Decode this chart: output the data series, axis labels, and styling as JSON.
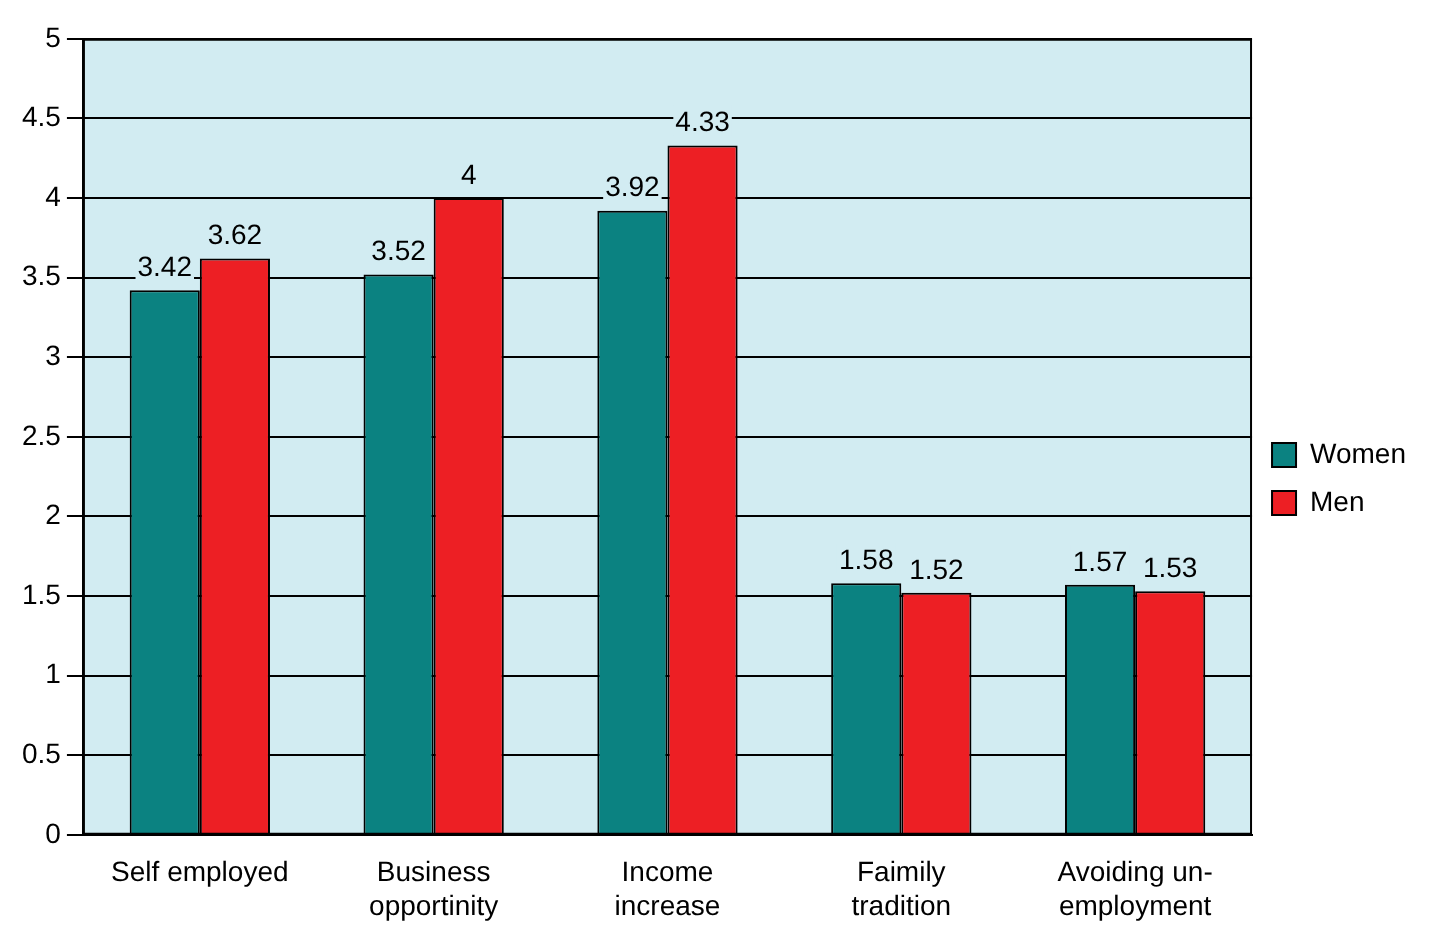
{
  "chart_data": {
    "type": "bar",
    "categories": [
      "Self employed",
      "Business opportinity",
      "Income increase",
      "Faimily tradition",
      "Avoiding un-employment"
    ],
    "series": [
      {
        "name": "Women",
        "color": "#0b8281",
        "values": [
          3.42,
          3.52,
          3.92,
          1.58,
          1.57
        ]
      },
      {
        "name": "Men",
        "color": "#ed1f24",
        "values": [
          3.62,
          4,
          4.33,
          1.52,
          1.53
        ]
      }
    ],
    "ylim": [
      0,
      5
    ],
    "yticks": [
      0,
      0.5,
      1,
      1.5,
      2,
      2.5,
      3,
      3.5,
      4,
      4.5,
      5
    ],
    "grid": "y",
    "legend": "right",
    "data_labels": true
  }
}
